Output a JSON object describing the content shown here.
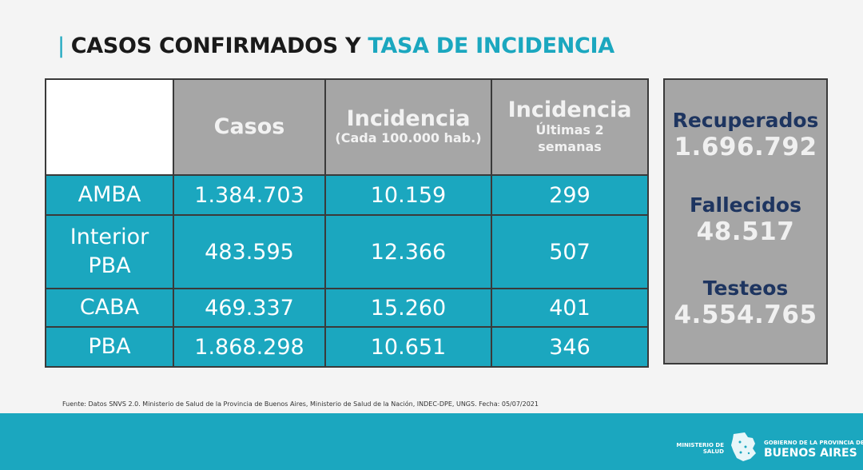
{
  "title": {
    "part1": "CASOS CONFIRMADOS Y",
    "part2": "TASA DE INCIDENCIA"
  },
  "table": {
    "headers": {
      "casos": "Casos",
      "incidencia": "Incidencia",
      "incidencia_sub": "(Cada 100.000 hab.)",
      "incidencia2": "Incidencia",
      "incidencia2_sub1": "Últimas 2",
      "incidencia2_sub2": "semanas"
    },
    "rows": [
      {
        "region": "AMBA",
        "casos": "1.384.703",
        "incidencia": "10.159",
        "ultimas": "299"
      },
      {
        "region_line1": "Interior",
        "region_line2": "PBA",
        "casos": "483.595",
        "incidencia": "12.366",
        "ultimas": "507"
      },
      {
        "region": "CABA",
        "casos": "469.337",
        "incidencia": "15.260",
        "ultimas": "401"
      },
      {
        "region": "PBA",
        "casos": "1.868.298",
        "incidencia": "10.651",
        "ultimas": "346"
      }
    ]
  },
  "summary": {
    "recuperados_label": "Recuperados",
    "recuperados_value": "1.696.792",
    "fallecidos_label": "Fallecidos",
    "fallecidos_value": "48.517",
    "testeos_label": "Testeos",
    "testeos_value": "4.554.765"
  },
  "source": "Fuente: Datos SNVS 2.0. Ministerio de Salud de la Provincia de Buenos Aires, Ministerio de Salud de la Nación, INDEC-DPE, UNGS. Fecha: 05/07/2021",
  "footer": {
    "ministerio_line1": "MINISTERIO DE",
    "ministerio_line2": "SALUD",
    "gobierno": "GOBIERNO DE LA PROVINCIA DE",
    "bsas": "BUENOS AIRES"
  },
  "colors": {
    "accent": "#1ba7bf",
    "header_gray": "#a6a6a6",
    "navy": "#1e3560"
  }
}
